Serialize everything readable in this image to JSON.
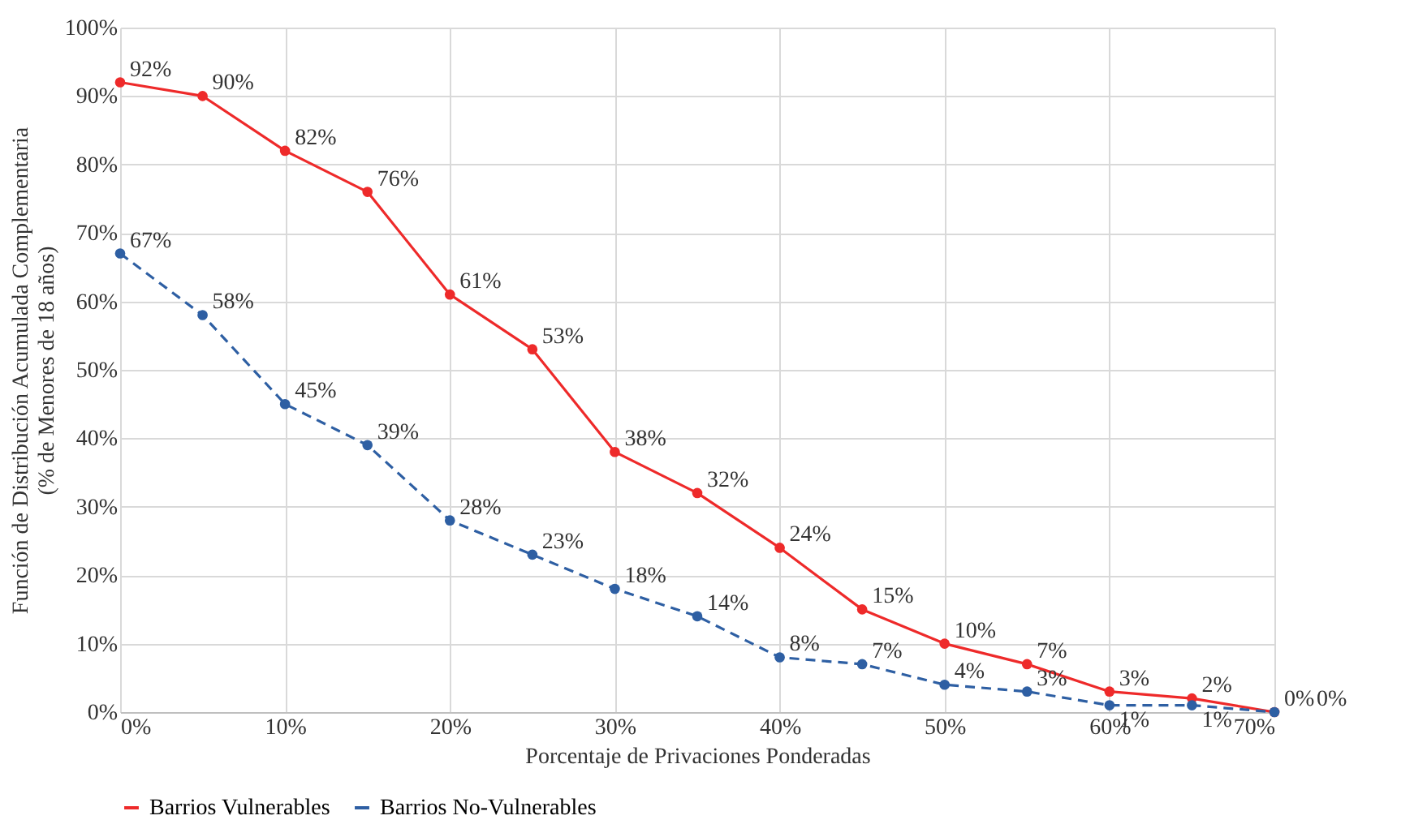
{
  "chart_data": {
    "type": "line",
    "xlabel": "Porcentaje de Privaciones Ponderadas",
    "ylabel": "Función de Distribución Acumulada Complementaria\n(% de Menores de 18 años)",
    "x": [
      0,
      5,
      10,
      15,
      20,
      25,
      30,
      35,
      40,
      45,
      50,
      55,
      60,
      65,
      70
    ],
    "series": [
      {
        "name": "Barrios Vulnerables",
        "color": "#ee2a2a",
        "line_style": "solid",
        "values": [
          92,
          90,
          82,
          76,
          61,
          53,
          38,
          32,
          24,
          15,
          10,
          7,
          3,
          2,
          0
        ],
        "value_labels": [
          "92%",
          "90%",
          "82%",
          "76%",
          "61%",
          "53%",
          "38%",
          "32%",
          "24%",
          "15%",
          "10%",
          "7%",
          "3%",
          "2%",
          "0%"
        ]
      },
      {
        "name": "Barrios No-Vulnerables",
        "color": "#2e5fa3",
        "line_style": "dashed",
        "values": [
          67,
          58,
          45,
          39,
          28,
          23,
          18,
          14,
          8,
          7,
          4,
          3,
          1,
          1,
          0
        ],
        "value_labels": [
          "67%",
          "58%",
          "45%",
          "39%",
          "28%",
          "23%",
          "18%",
          "14%",
          "8%",
          "7%",
          "4%",
          "3%",
          "1%",
          "1%",
          "0%"
        ]
      }
    ],
    "xlim": [
      0,
      70
    ],
    "xticks": [
      {
        "value": 0,
        "label": "0%"
      },
      {
        "value": 10,
        "label": "10%"
      },
      {
        "value": 20,
        "label": "20%"
      },
      {
        "value": 30,
        "label": "30%"
      },
      {
        "value": 40,
        "label": "40%"
      },
      {
        "value": 50,
        "label": "50%"
      },
      {
        "value": 60,
        "label": "60%"
      },
      {
        "value": 70,
        "label": "70%"
      }
    ],
    "ylim": [
      0,
      100
    ],
    "yticks": [
      {
        "value": 0,
        "label": "0%"
      },
      {
        "value": 10,
        "label": "10%"
      },
      {
        "value": 20,
        "label": "20%"
      },
      {
        "value": 30,
        "label": "30%"
      },
      {
        "value": 40,
        "label": "40%"
      },
      {
        "value": 50,
        "label": "50%"
      },
      {
        "value": 60,
        "label": "60%"
      },
      {
        "value": 70,
        "label": "70%"
      },
      {
        "value": 80,
        "label": "80%"
      },
      {
        "value": 90,
        "label": "90%"
      },
      {
        "value": 100,
        "label": "100%"
      }
    ],
    "grid": true,
    "legend": "bottom",
    "marker": "circle"
  }
}
